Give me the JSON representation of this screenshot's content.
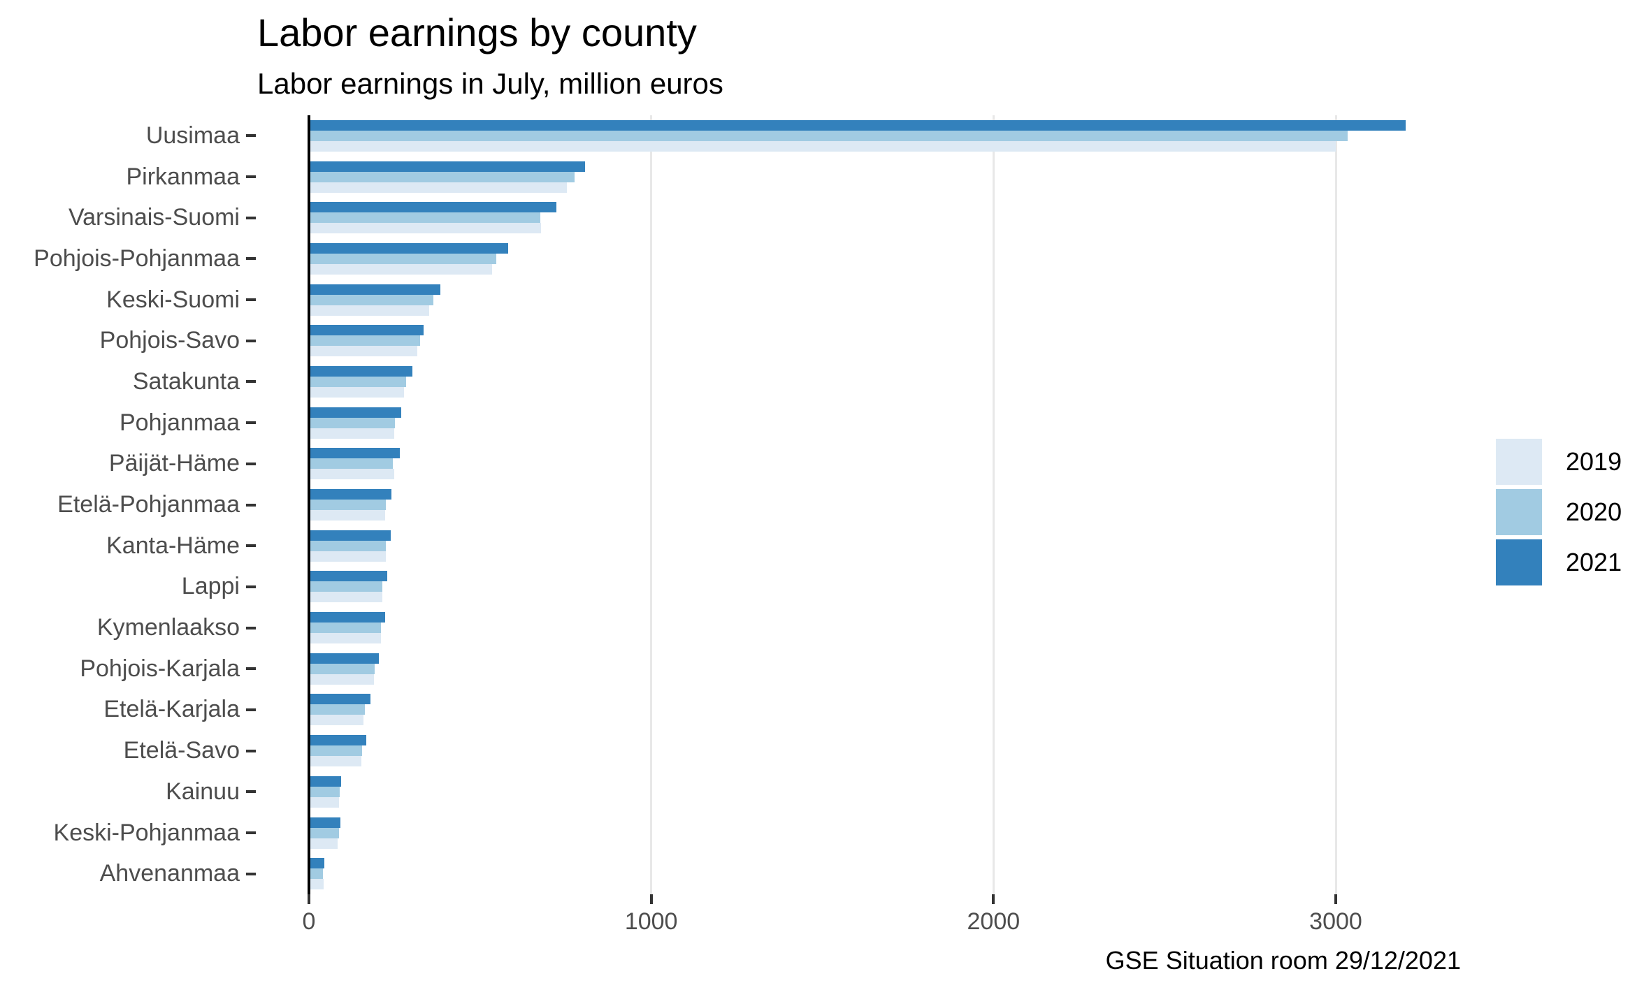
{
  "title": "Labor earnings by county",
  "subtitle": "Labor earnings in July, million euros",
  "caption": "GSE Situation room 29/12/2021",
  "colors": {
    "series_2019": "#dde9f4",
    "series_2020": "#a1cbe2",
    "series_2021": "#3381bc",
    "axis_line": "#000000",
    "tick_mark": "#333333",
    "axis_text": "#4d4d4d",
    "gridline": "#e8e8e8",
    "background": "#ffffff"
  },
  "legend": {
    "position": "right",
    "entries": [
      {
        "label": "2019",
        "color": "#dde9f4"
      },
      {
        "label": "2020",
        "color": "#a1cbe2"
      },
      {
        "label": "2021",
        "color": "#3381bc"
      }
    ]
  },
  "x_axis": {
    "ticks": [
      0,
      1000,
      2000,
      3000
    ],
    "tick_labels": [
      "0",
      "1000",
      "2000",
      "3000"
    ],
    "max": 3365
  },
  "chart_data": {
    "type": "bar",
    "orientation": "horizontal",
    "title": "Labor earnings by county",
    "subtitle": "Labor earnings in July, million euros",
    "xlabel": "",
    "ylabel": "",
    "xlim": [
      0,
      3365
    ],
    "grid": "vertical-only",
    "legend_position": "right",
    "bar_order_top_to_bottom": [
      "2021",
      "2020",
      "2019"
    ],
    "categories": [
      "Uusimaa",
      "Pirkanmaa",
      "Varsinais-Suomi",
      "Pohjois-Pohjanmaa",
      "Keski-Suomi",
      "Pohjois-Savo",
      "Satakunta",
      "Pohjanmaa",
      "Päijät-Häme",
      "Etelä-Pohjanmaa",
      "Kanta-Häme",
      "Lappi",
      "Kymenlaakso",
      "Pohjois-Karjala",
      "Etelä-Karjala",
      "Etelä-Savo",
      "Kainuu",
      "Keski-Pohjanmaa",
      "Ahvenanmaa"
    ],
    "series": [
      {
        "name": "2019",
        "values": [
          3000,
          754,
          679,
          535,
          352,
          316,
          277,
          250,
          250,
          222,
          224,
          214,
          210,
          189,
          160,
          154,
          87,
          84,
          43
        ]
      },
      {
        "name": "2020",
        "values": [
          3035,
          776,
          675,
          547,
          363,
          324,
          283,
          252,
          246,
          225,
          224,
          214,
          210,
          192,
          163,
          156,
          89,
          87,
          41
        ]
      },
      {
        "name": "2021",
        "values": [
          3205,
          807,
          722,
          582,
          383,
          334,
          303,
          269,
          265,
          240,
          238,
          228,
          222,
          205,
          179,
          167,
          93,
          91,
          44
        ]
      }
    ]
  }
}
